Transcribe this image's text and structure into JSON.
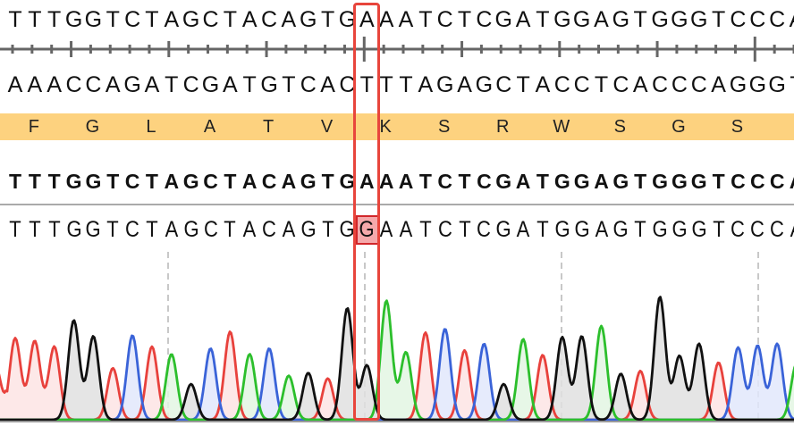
{
  "reference": {
    "sequence": "TTTGGTCTAGCTACAGTGAAATCTCGATGGAGTGGGTCCCA"
  },
  "reverse_complement": {
    "sequence": "AAACCAGATCGATGTCACTTTAGAGCTACCTCACCCAGGGT"
  },
  "translation": {
    "amino_acids": [
      "F",
      "G",
      "L",
      "A",
      "T",
      "V",
      "K",
      "S",
      "R",
      "W",
      "S",
      "G",
      "S"
    ],
    "band_color": "#fdd27f"
  },
  "consensus": {
    "sequence": "TTTGGTCTAGCTACAGTGAAATCTCGATGGAGTGGGTCCCA"
  },
  "read": {
    "sequence": "TTTGGTCTAGCTACAGTGGAATCTCGATGGAGTGGGTCCCA",
    "variant_index": 18,
    "variant_base": "G",
    "reference_base": "A"
  },
  "selection": {
    "column_index": 18,
    "color": "#e8453c"
  },
  "chart_data": {
    "type": "line",
    "title": "",
    "channels": {
      "A": {
        "color": "#2cbf2c",
        "fill": "#e3f6e3"
      },
      "C": {
        "color": "#3a63d8",
        "fill": "#e2e8fb"
      },
      "G": {
        "color": "#111111",
        "fill": "#e0e0e0"
      },
      "T": {
        "color": "#e8413c",
        "fill": "#fde4e4"
      }
    },
    "peak_heights": [
      87,
      84,
      78,
      106,
      89,
      55,
      90,
      78,
      70,
      38,
      76,
      94,
      70,
      76,
      47,
      50,
      44,
      119,
      58,
      127,
      72,
      93,
      97,
      74,
      81,
      38,
      86,
      69,
      88,
      89,
      100,
      49,
      52,
      131,
      68,
      81,
      61,
      77,
      79,
      81,
      60
    ],
    "secondary_peaks": [
      {
        "index": 18,
        "base": "A",
        "height": 0
      }
    ],
    "ylim": [
      0,
      140
    ],
    "grid": false
  }
}
